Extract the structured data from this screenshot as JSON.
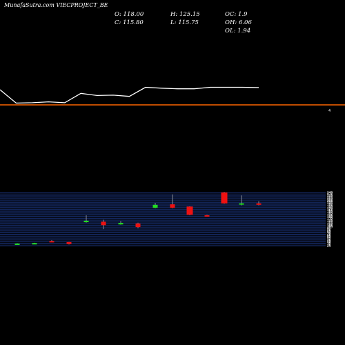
{
  "header": {
    "title": "MunafaSutra.com",
    "symbol": "VIECPROJECT_BE"
  },
  "ohlc": {
    "open": "O: 118.00",
    "high": "H: 125.15",
    "oc": "OC: 1.9",
    "close": "C: 115.80",
    "low": "L: 115.75",
    "oh": "OH: 6.06",
    "ol": "OL: 1.94"
  },
  "colors": {
    "up": "#22dd22",
    "down": "#ee1111",
    "line": "#ffffff",
    "divider": "#ff6600",
    "grid": "#1e3a8a"
  },
  "chart_data": [
    {
      "type": "line",
      "series": [
        {
          "values": [
            0.5,
            0.06,
            0.07,
            0.1,
            0.07,
            0.38,
            0.31,
            0.32,
            0.28,
            0.58,
            0.55,
            0.53,
            0.53,
            0.58,
            0.58,
            0.58,
            0.57
          ]
        }
      ]
    },
    {
      "type": "candlestick",
      "ylim": [
        20,
        248
      ],
      "candles": [
        {
          "o": 32,
          "h": 35,
          "l": 31,
          "c": 34,
          "dir": "up"
        },
        {
          "o": 34,
          "h": 37,
          "l": 33,
          "c": 36,
          "dir": "up"
        },
        {
          "o": 44,
          "h": 48,
          "l": 40,
          "c": 42,
          "dir": "down"
        },
        {
          "o": 40,
          "h": 41,
          "l": 30,
          "c": 32,
          "dir": "down"
        },
        {
          "o": 120,
          "h": 148,
          "l": 118,
          "c": 126,
          "dir": "up"
        },
        {
          "o": 122,
          "h": 130,
          "l": 92,
          "c": 108,
          "dir": "down"
        },
        {
          "o": 111,
          "h": 125,
          "l": 110,
          "c": 117,
          "dir": "up"
        },
        {
          "o": 115,
          "h": 118,
          "l": 95,
          "c": 100,
          "dir": "down"
        },
        {
          "o": 178,
          "h": 198,
          "l": 176,
          "c": 190,
          "dir": "up"
        },
        {
          "o": 192,
          "h": 232,
          "l": 176,
          "c": 178,
          "dir": "down"
        },
        {
          "o": 183,
          "h": 184,
          "l": 148,
          "c": 150,
          "dir": "down"
        },
        {
          "o": 148,
          "h": 150,
          "l": 143,
          "c": 146,
          "dir": "down"
        },
        {
          "o": 240,
          "h": 242,
          "l": 194,
          "c": 196,
          "dir": "down"
        },
        {
          "o": 192,
          "h": 228,
          "l": 188,
          "c": 196,
          "dir": "up"
        },
        {
          "o": 196,
          "h": 205,
          "l": 188,
          "c": 190,
          "dir": "down"
        }
      ],
      "y_ticks": [
        240,
        237,
        232,
        228,
        224,
        220,
        216,
        212,
        208,
        204,
        200,
        196,
        192,
        188,
        184,
        180,
        176,
        172,
        168,
        164,
        160,
        156,
        152,
        148,
        144,
        140,
        136,
        132,
        128,
        124,
        120,
        116,
        112,
        108,
        104,
        100,
        96,
        92,
        88,
        84,
        80,
        76,
        72,
        68,
        64,
        60,
        56,
        52,
        48,
        44,
        40,
        36,
        32,
        28,
        24
      ]
    }
  ]
}
